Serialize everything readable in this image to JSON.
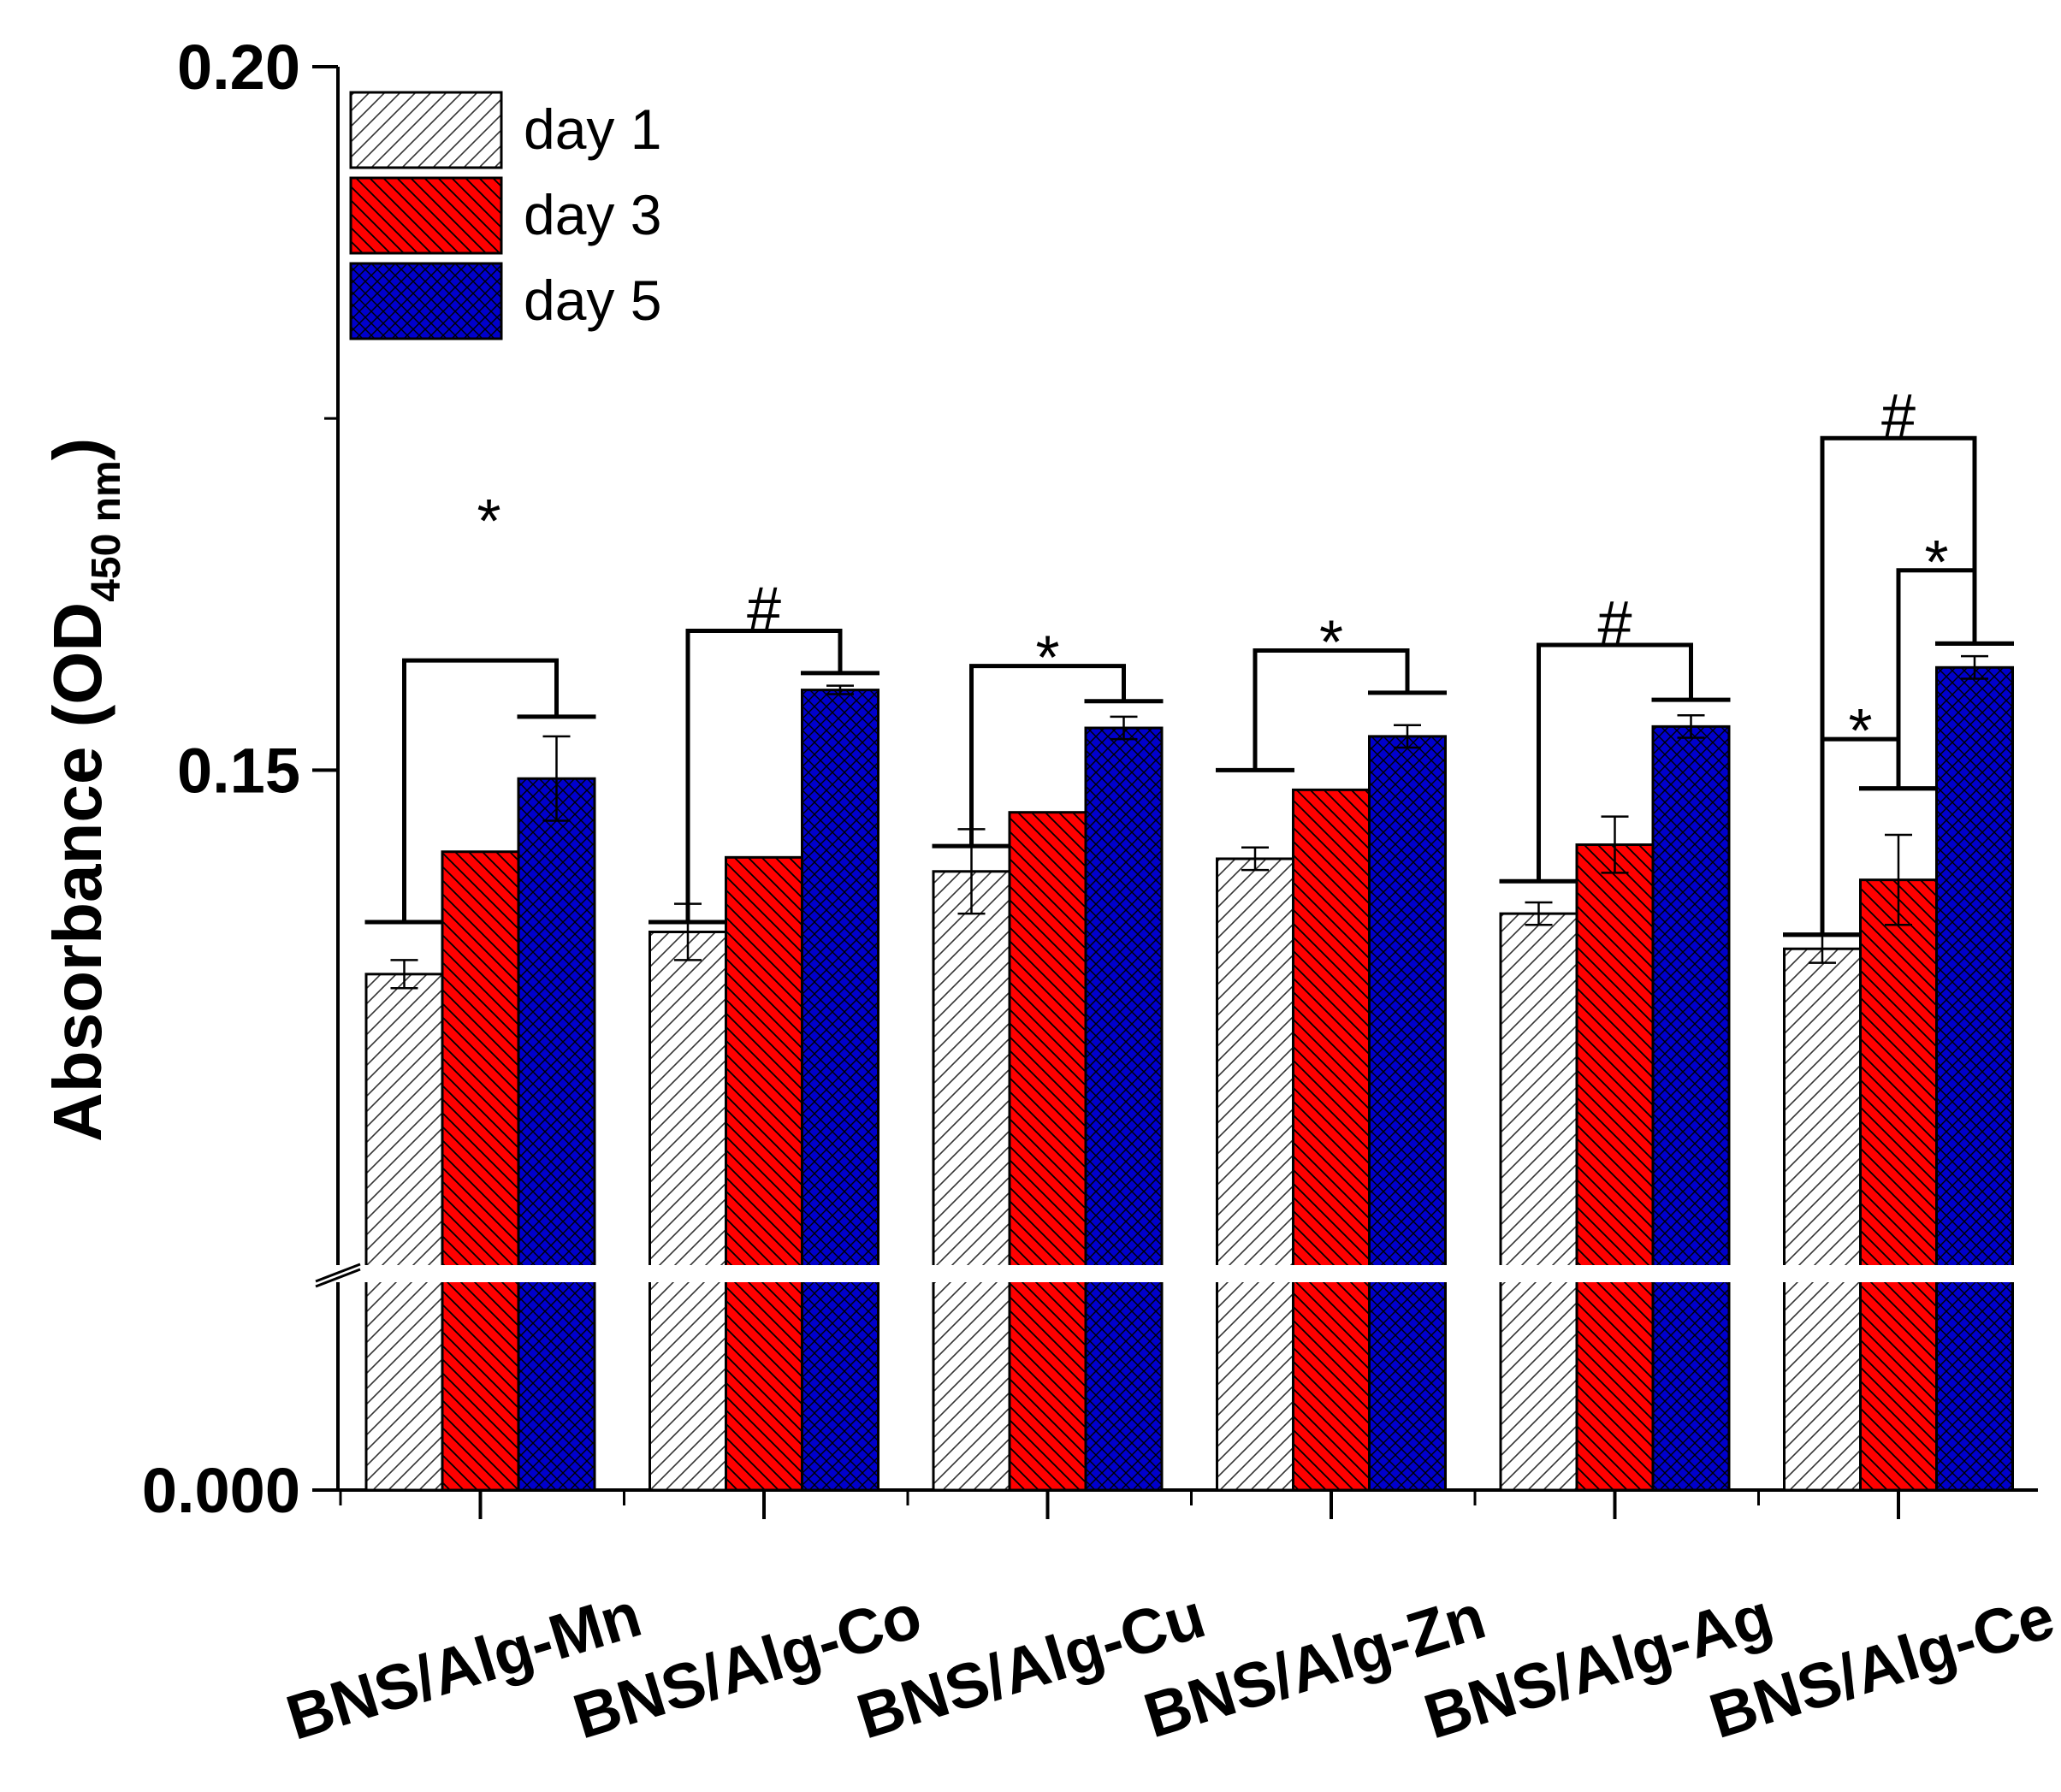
{
  "chart_data": {
    "type": "bar",
    "ylabel": "Absorbance (OD",
    "ylabel_subscript": "450 nm",
    "ylabel_close": ")",
    "y_axis_break": true,
    "ylim_lower_segment": [
      0,
      0.01
    ],
    "ylim_upper_segment": [
      0.115,
      0.2
    ],
    "yticks": [
      {
        "value": 0.0,
        "label": "0.000"
      },
      {
        "value": 0.15,
        "label": "0.15"
      },
      {
        "value": 0.2,
        "label": "0.20"
      }
    ],
    "categories": [
      "BNS/Alg-Mn",
      "BNS/Alg-Co",
      "BNS/Alg-Cu",
      "BNS/Alg-Zn",
      "BNS/Alg-Ag",
      "BNS/Alg-Ce"
    ],
    "series": [
      {
        "name": "day 1",
        "color": "#ffffff",
        "pattern": "hatch-light",
        "values": [
          0.1355,
          0.1385,
          0.1428,
          0.1437,
          0.1398,
          0.1373
        ],
        "errors": [
          0.001,
          0.002,
          0.003,
          0.0008,
          0.0008,
          0.001
        ]
      },
      {
        "name": "day 3",
        "color": "#ff0000",
        "pattern": "hatch-back",
        "values": [
          0.1442,
          0.1438,
          0.147,
          0.1486,
          0.1447,
          0.1422
        ],
        "errors": [
          0.0,
          0.0,
          0.0,
          0.0,
          0.002,
          0.0032
        ]
      },
      {
        "name": "day 5",
        "color": "#0000cc",
        "pattern": "crosshatch",
        "values": [
          0.1494,
          0.1557,
          0.153,
          0.1524,
          0.1531,
          0.1573
        ],
        "errors": [
          0.003,
          0.0003,
          0.0008,
          0.0008,
          0.0008,
          0.0008
        ]
      }
    ],
    "legend": {
      "position": "top-left",
      "entries": [
        "day 1",
        "day 3",
        "day 5"
      ]
    },
    "significance": [
      {
        "category": 0,
        "from": 0,
        "to": 2,
        "label": "*",
        "top": 0.1578,
        "left_end": 0.1392,
        "right_end": 0.1538,
        "label_at": 0.1685
      },
      {
        "category": 1,
        "from": 0,
        "to": 2,
        "label": "#",
        "top": 0.1599,
        "left_end": 0.1392,
        "right_end": 0.1569,
        "label_at": 0.1613
      },
      {
        "category": 2,
        "from": 0,
        "to": 2,
        "label": "*",
        "top": 0.1574,
        "left_end": 0.1446,
        "right_end": 0.1549,
        "label_at": 0.1588
      },
      {
        "category": 3,
        "from": 0,
        "to": 2,
        "label": "*",
        "top": 0.1585,
        "left_end": 0.15,
        "right_end": 0.1555,
        "label_at": 0.1599
      },
      {
        "category": 4,
        "from": 0,
        "to": 2,
        "label": "#",
        "top": 0.1589,
        "left_end": 0.1421,
        "right_end": 0.155,
        "label_at": 0.1603
      },
      {
        "category": 5,
        "from": 0,
        "to": 2,
        "label": "#",
        "top": 0.1736,
        "left_end": 0.1383,
        "right_end": 0.159,
        "label_at": 0.175
      },
      {
        "category": 5,
        "from": 1,
        "to": 2,
        "label": "*",
        "top": 0.1642,
        "left_end": 0.1487,
        "right_end": 0.159,
        "label_at": 0.1656
      },
      {
        "category": 5,
        "from": 0,
        "to": 1,
        "label": "*",
        "top": 0.1522,
        "left_end": 0.1383,
        "right_end": 0.1487,
        "label_at": 0.1536
      }
    ]
  }
}
